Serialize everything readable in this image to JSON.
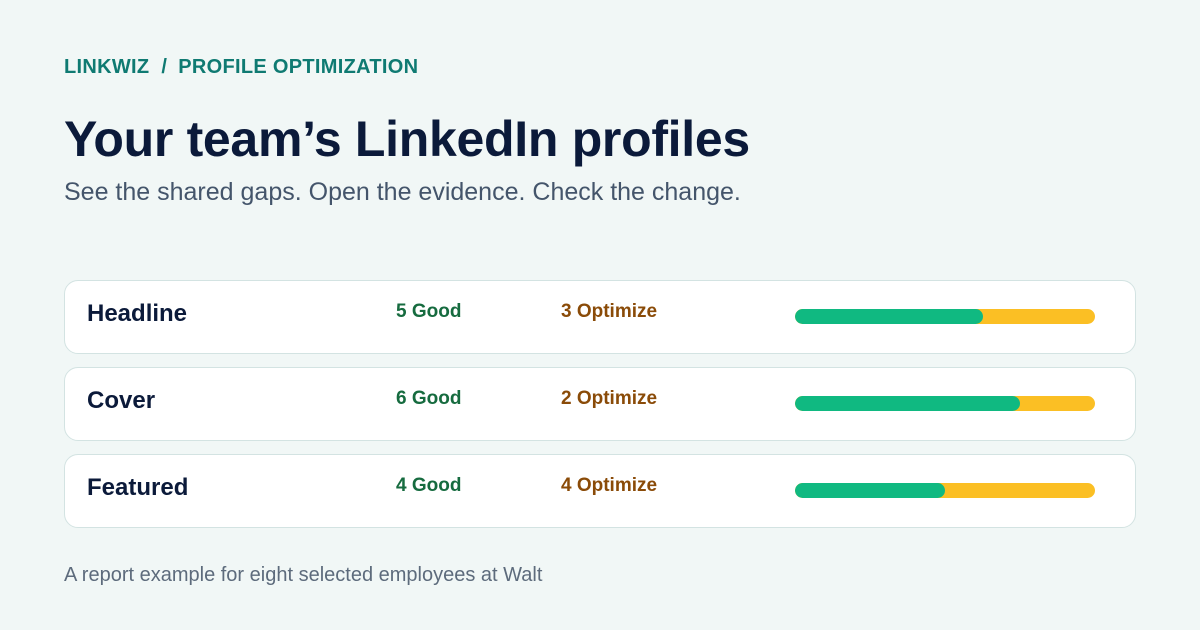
{
  "header": {
    "breadcrumb": [
      {
        "label": "LINKWIZ"
      },
      {
        "label": "PROFILE OPTIMIZATION"
      }
    ],
    "separator": "/",
    "title": "Your team’s LinkedIn profiles",
    "subtitle": "See the shared gaps. Open the evidence. Check the change."
  },
  "colors": {
    "good_bar": "#10b981",
    "optimize_bar": "#fbbf24",
    "good_text": "#166b3f",
    "optimize_text": "#8a4b08",
    "accent": "#0f7a72"
  },
  "rows": [
    {
      "label": "Headline",
      "good_text": "5 Good",
      "optimize_text": "3 Optimize",
      "good": 5,
      "optimize": 3
    },
    {
      "label": "Cover",
      "good_text": "6 Good",
      "optimize_text": "2 Optimize",
      "good": 6,
      "optimize": 2
    },
    {
      "label": "Featured",
      "good_text": "4 Good",
      "optimize_text": "4 Optimize",
      "good": 4,
      "optimize": 4
    }
  ],
  "footer": "A report example for eight selected employees at Walt"
}
